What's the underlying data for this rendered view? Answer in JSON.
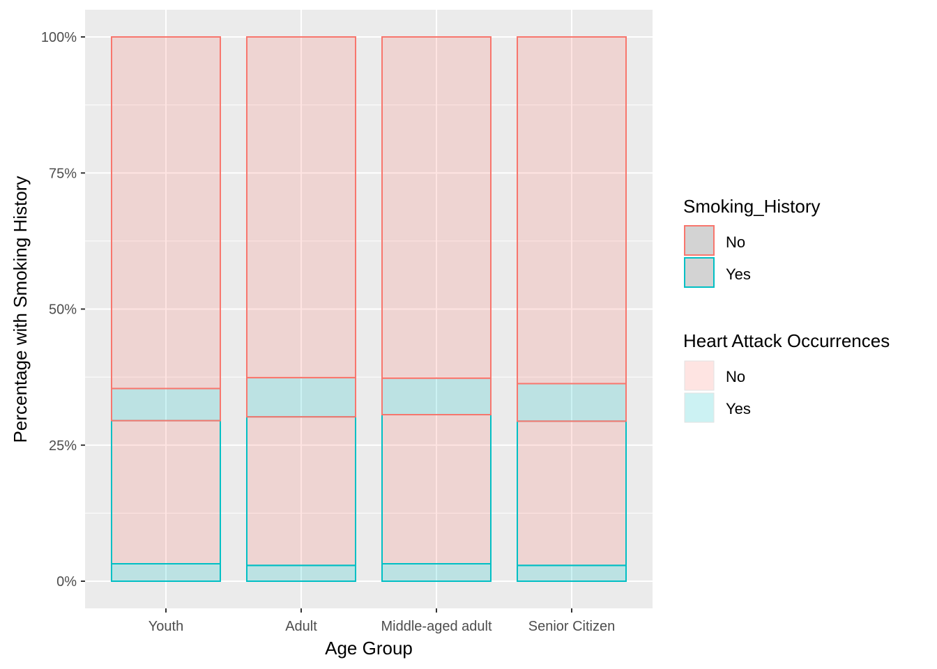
{
  "chart_data": {
    "type": "bar",
    "stacked": true,
    "position": "fill",
    "xlabel": "Age Group",
    "ylabel": "Percentage with Smoking History",
    "categories": [
      "Youth",
      "Adult",
      "Middle-aged adult",
      "Senior Citizen"
    ],
    "ylim": [
      0,
      1
    ],
    "y_ticks": [
      0,
      0.25,
      0.5,
      0.75,
      1.0
    ],
    "y_tick_labels": [
      "0%",
      "25%",
      "50%",
      "75%",
      "100%"
    ],
    "grid": true,
    "panel_background": "#EBEBEB",
    "segments_bottom_to_top": [
      {
        "smoking_history": "Yes",
        "heart_attack": "Yes",
        "values": [
          0.032,
          0.029,
          0.032,
          0.029
        ]
      },
      {
        "smoking_history": "Yes",
        "heart_attack": "No",
        "values": [
          0.263,
          0.273,
          0.274,
          0.265
        ]
      },
      {
        "smoking_history": "No",
        "heart_attack": "Yes",
        "values": [
          0.059,
          0.072,
          0.067,
          0.069
        ]
      },
      {
        "smoking_history": "No",
        "heart_attack": "No",
        "values": [
          0.646,
          0.626,
          0.627,
          0.637
        ]
      }
    ],
    "legends": [
      {
        "title": "Smoking_History",
        "aesthetic": "outline",
        "items": [
          {
            "label": "No",
            "color": "#F8766D"
          },
          {
            "label": "Yes",
            "color": "#00BFC4"
          }
        ]
      },
      {
        "title": "Heart Attack Occurrences",
        "aesthetic": "fill",
        "items": [
          {
            "label": "No",
            "color": "#F8766D"
          },
          {
            "label": "Yes",
            "color": "#00BFC4"
          }
        ]
      }
    ],
    "legend_position": "right",
    "colors": {
      "No": "#F8766D",
      "Yes": "#00BFC4",
      "legend_key_fill": "#D3D3D3"
    }
  }
}
